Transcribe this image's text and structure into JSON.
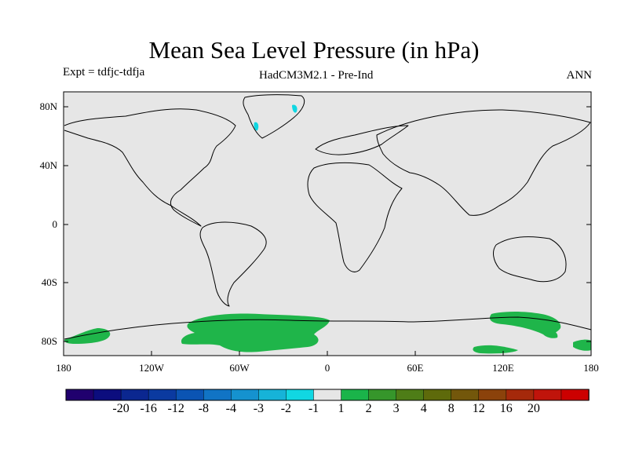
{
  "title": "Mean Sea Level Pressure (in hPa)",
  "experiment": "Expt = tdfjc-tdfja",
  "model": "HadCM3M2.1 - Pre-Ind",
  "season": "ANN",
  "lat_ticks": [
    "80N",
    "40N",
    "0",
    "40S",
    "80S"
  ],
  "lon_ticks": [
    "180",
    "120W",
    "60W",
    "0",
    "60E",
    "120E",
    "180"
  ],
  "colorbar": {
    "colors": [
      "#20006e",
      "#0c0d7e",
      "#0b2790",
      "#0b3aa0",
      "#0b54b3",
      "#1174c5",
      "#1592cf",
      "#16b3d8",
      "#11d7e2",
      "#e6e6e6",
      "#1ab44a",
      "#36962b",
      "#4e7d17",
      "#5e6a0b",
      "#73570b",
      "#8b420b",
      "#a5290b",
      "#c0140b",
      "#cc0000"
    ],
    "labels": [
      "-20",
      "-16",
      "-12",
      "-8",
      "-4",
      "-3",
      "-2",
      "-1",
      "1",
      "2",
      "3",
      "4",
      "8",
      "12",
      "16",
      "20"
    ]
  },
  "colors": {
    "background": "#e6e6e6",
    "positive_anomaly": "#1fb54a",
    "negative_anomaly": "#11d7e2",
    "coast": "#000000"
  }
}
